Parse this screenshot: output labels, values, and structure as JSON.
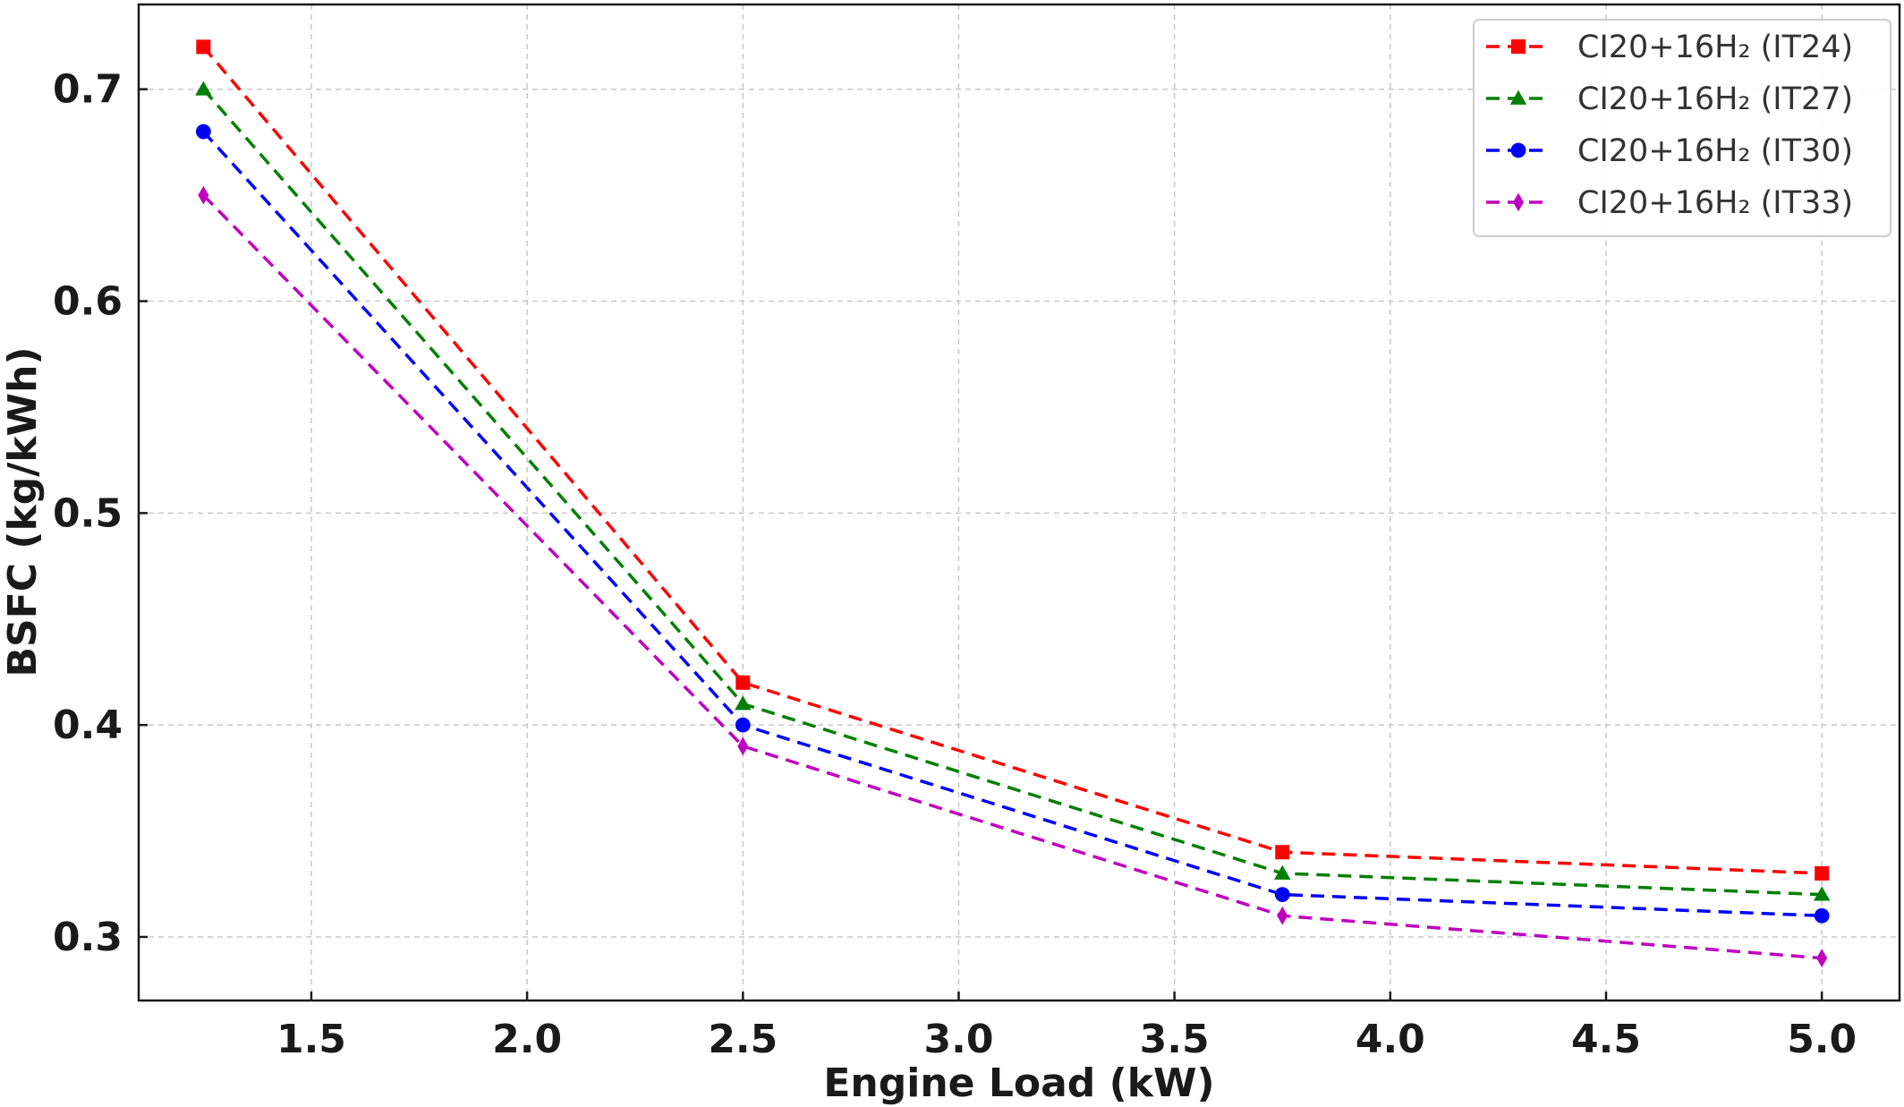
{
  "chart_data": {
    "type": "line",
    "title": "",
    "xlabel": "Engine Load (kW)",
    "ylabel": "BSFC (kg/kWh)",
    "xlim": [
      1.1,
      5.18
    ],
    "ylim": [
      0.27,
      0.74
    ],
    "xticks": [
      1.5,
      2.0,
      2.5,
      3.0,
      3.5,
      4.0,
      4.5,
      5.0
    ],
    "xtick_labels": [
      "1.5",
      "2.0",
      "2.5",
      "3.0",
      "3.5",
      "4.0",
      "4.5",
      "5.0"
    ],
    "yticks": [
      0.3,
      0.4,
      0.5,
      0.6,
      0.7
    ],
    "ytick_labels": [
      "0.3",
      "0.4",
      "0.5",
      "0.6",
      "0.7"
    ],
    "grid": true,
    "legend_position": "top-right",
    "x": [
      1.25,
      2.5,
      3.75,
      5.0
    ],
    "series": [
      {
        "name": "CI20+16H₂ (IT24)",
        "values": [
          0.72,
          0.42,
          0.34,
          0.33
        ],
        "color": "#ff0000",
        "marker": "square"
      },
      {
        "name": "CI20+16H₂ (IT27)",
        "values": [
          0.7,
          0.41,
          0.33,
          0.32
        ],
        "color": "#008000",
        "marker": "triangle"
      },
      {
        "name": "CI20+16H₂ (IT30)",
        "values": [
          0.68,
          0.4,
          0.32,
          0.31
        ],
        "color": "#0000ff",
        "marker": "circle"
      },
      {
        "name": "CI20+16H₂ (IT33)",
        "values": [
          0.65,
          0.39,
          0.31,
          0.29
        ],
        "color": "#bf00bf",
        "marker": "diamond"
      }
    ]
  }
}
